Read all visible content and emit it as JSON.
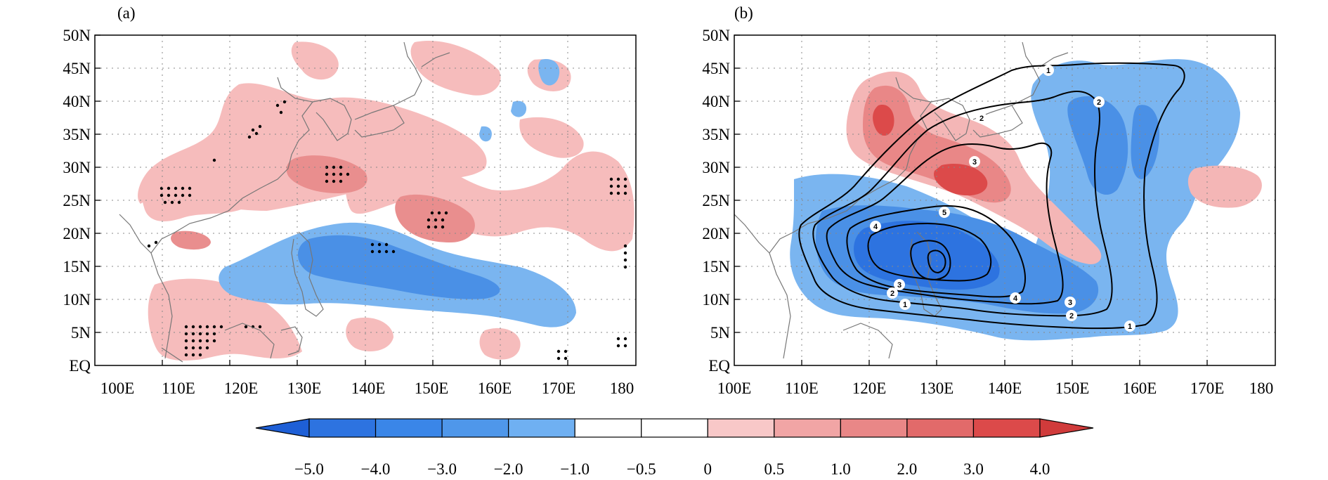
{
  "panels": [
    {
      "label": "(a)",
      "name": "panel-a"
    },
    {
      "label": "(b)",
      "name": "panel-b"
    }
  ],
  "axes": {
    "lat_ticks": [
      "50N",
      "45N",
      "40N",
      "35N",
      "30N",
      "25N",
      "20N",
      "15N",
      "10N",
      "5N",
      "EQ"
    ],
    "lon_ticks": [
      "100E",
      "110E",
      "120E",
      "130E",
      "140E",
      "150E",
      "160E",
      "170E",
      "180"
    ]
  },
  "colorbar": {
    "labels": [
      "-5.0",
      "-4.0",
      "-3.0",
      "-2.0",
      "-1.0",
      "-0.5",
      "0",
      "0.5",
      "1.0",
      "2.0",
      "3.0",
      "4.0"
    ],
    "colors": [
      "#1e5fd6",
      "#2d73e0",
      "#3a86e8",
      "#4f97ea",
      "#6fb0f2",
      "#ffffff",
      "#ffffff",
      "#f8c8c8",
      "#f1a5a5",
      "#e98787",
      "#e26a6a",
      "#dc4a4a",
      "#d03b3b"
    ]
  },
  "contour_labels_b": [
    "1",
    "2",
    "3",
    "4",
    "5",
    "3",
    "4",
    "2",
    "1",
    "1",
    "2",
    "3",
    "2"
  ],
  "colors": {
    "blue_fill": "#6fb0f2",
    "blue_mid": "#3a86e8",
    "blue_deep": "#2d73e0",
    "red_fill": "#f4b6b6",
    "red_mid": "#e98787",
    "red_deep": "#dc4a4a",
    "coast": "#777777"
  }
}
